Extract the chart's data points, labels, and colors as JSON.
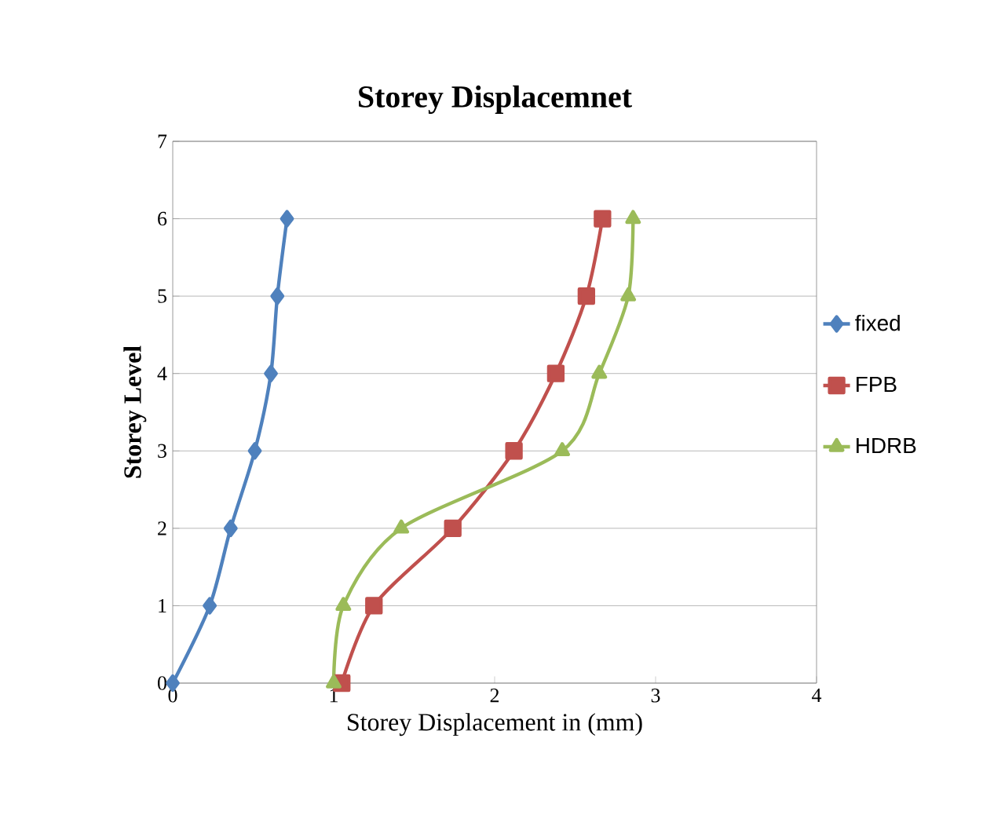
{
  "chart_data": {
    "type": "line",
    "title": "Storey Displacemnet",
    "xlabel": "Storey Displacement in (mm)",
    "ylabel": "Storey Level",
    "xlim": [
      0,
      4
    ],
    "xticks": [
      0,
      1,
      2,
      3,
      4
    ],
    "ylim": [
      0,
      7
    ],
    "yticks": [
      0,
      1,
      2,
      3,
      4,
      5,
      6,
      7
    ],
    "grid": "y",
    "legend": "right",
    "series": [
      {
        "name": "fixed",
        "color": "#4f81bd",
        "marker": "diamond",
        "x": [
          0,
          0.23,
          0.36,
          0.51,
          0.61,
          0.65,
          0.71
        ],
        "values": [
          0,
          1,
          2,
          3,
          4,
          5,
          6
        ]
      },
      {
        "name": "FPB",
        "color": "#c0504d",
        "marker": "square",
        "x": [
          1.05,
          1.25,
          1.74,
          2.12,
          2.38,
          2.57,
          2.67
        ],
        "values": [
          0,
          1,
          2,
          3,
          4,
          5,
          6
        ]
      },
      {
        "name": "HDRB",
        "color": "#9bbb59",
        "marker": "triangle",
        "x": [
          1.0,
          1.06,
          1.42,
          2.42,
          2.65,
          2.83,
          2.86
        ],
        "values": [
          0,
          1,
          2,
          3,
          4,
          5,
          6
        ]
      }
    ]
  }
}
